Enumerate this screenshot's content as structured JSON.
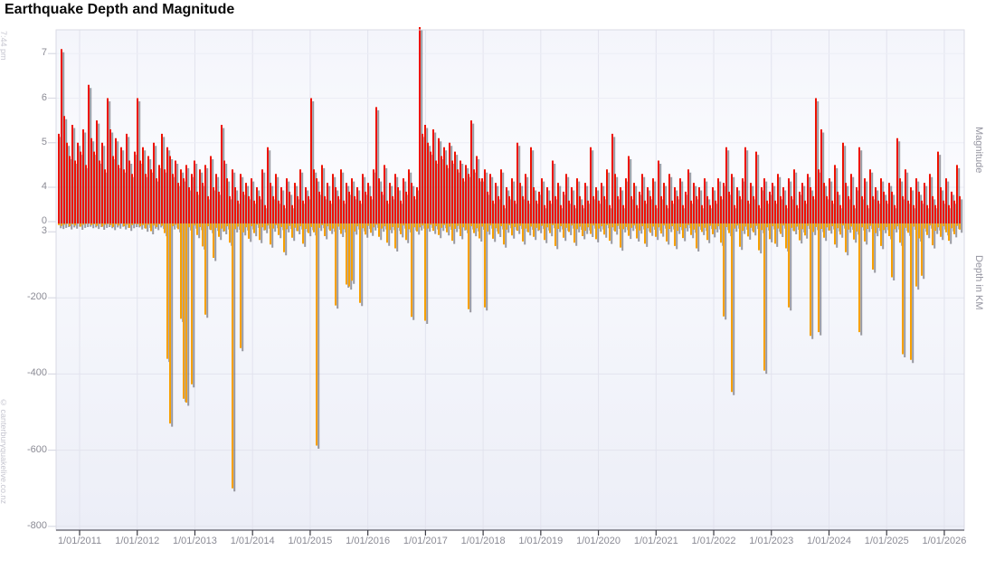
{
  "page": {
    "title": "Earthquake Depth and Magnitude"
  },
  "watermarks": {
    "time": "7:44 pm",
    "credit": "© canterburyquakelive.co.nz"
  },
  "chart_data": {
    "type": "bar",
    "title": "Earthquake Depth and Magnitude",
    "x_axis": {
      "tick_labels": [
        "1/01/2011",
        "1/01/2012",
        "1/01/2013",
        "1/01/2014",
        "1/01/2015",
        "1/01/2016",
        "1/01/2017",
        "1/01/2018",
        "1/01/2019",
        "1/01/2020",
        "1/01/2021",
        "1/01/2022",
        "1/01/2023",
        "1/01/2024",
        "1/01/2025",
        "1/01/2026"
      ],
      "range_years": [
        2010.6,
        2026.35
      ]
    },
    "y_axis_left": {
      "magnitude_ticks": [
        7,
        6,
        5,
        4,
        3
      ],
      "depth_zero_label": "0",
      "depth_ticks": [
        -200,
        -400,
        -600,
        -800
      ],
      "magnitude_range": [
        3,
        7.5
      ],
      "depth_range_km": [
        0,
        -800
      ]
    },
    "y_axis_right": {
      "top_label": "Magnitude",
      "bottom_label": "Depth in KM"
    },
    "legend": "none",
    "grid": "on",
    "series": [
      {
        "name": "Magnitude",
        "color": "#ee1100",
        "direction": "up"
      },
      {
        "name": "Depth in KM",
        "color": "#f7a000",
        "direction": "down"
      }
    ],
    "points_format": [
      "magnitude",
      "depth_km"
    ],
    "points": [
      [
        5.2,
        -9
      ],
      [
        7.1,
        -11
      ],
      [
        5.6,
        -8
      ],
      [
        5.0,
        -6
      ],
      [
        4.7,
        -12
      ],
      [
        5.4,
        -7
      ],
      [
        4.6,
        -10
      ],
      [
        5.0,
        -5
      ],
      [
        4.8,
        -13
      ],
      [
        5.3,
        -8
      ],
      [
        4.5,
        -6
      ],
      [
        6.3,
        -5
      ],
      [
        5.1,
        -9
      ],
      [
        4.8,
        -7
      ],
      [
        5.5,
        -11
      ],
      [
        4.6,
        -6
      ],
      [
        5.0,
        -13
      ],
      [
        4.4,
        -8
      ],
      [
        6.0,
        -6
      ],
      [
        5.3,
        -9
      ],
      [
        4.7,
        -14
      ],
      [
        5.1,
        -7
      ],
      [
        4.5,
        -10
      ],
      [
        4.9,
        -5
      ],
      [
        4.4,
        -12
      ],
      [
        5.2,
        -8
      ],
      [
        4.6,
        -16
      ],
      [
        4.3,
        -9
      ],
      [
        4.8,
        -6
      ],
      [
        6.0,
        -7
      ],
      [
        4.6,
        -12
      ],
      [
        4.9,
        -9
      ],
      [
        4.3,
        -18
      ],
      [
        4.7,
        -8
      ],
      [
        4.4,
        -25
      ],
      [
        5.0,
        -10
      ],
      [
        4.2,
        -14
      ],
      [
        4.5,
        -7
      ],
      [
        5.2,
        -11
      ],
      [
        4.4,
        -30
      ],
      [
        4.9,
        -360
      ],
      [
        4.7,
        -530
      ],
      [
        4.3,
        -12
      ],
      [
        4.6,
        -8
      ],
      [
        4.1,
        -20
      ],
      [
        4.4,
        -255
      ],
      [
        4.2,
        -465
      ],
      [
        4.5,
        -475
      ],
      [
        4.0,
        -15
      ],
      [
        4.3,
        -427
      ],
      [
        4.6,
        -10
      ],
      [
        3.9,
        -35
      ],
      [
        4.4,
        -14
      ],
      [
        4.1,
        -65
      ],
      [
        4.5,
        -244
      ],
      [
        3.8,
        -12
      ],
      [
        4.7,
        -22
      ],
      [
        4.0,
        -95
      ],
      [
        4.3,
        -16
      ],
      [
        3.9,
        -40
      ],
      [
        5.4,
        -18
      ],
      [
        4.6,
        -25
      ],
      [
        4.2,
        -12
      ],
      [
        3.8,
        -55
      ],
      [
        4.4,
        -700
      ],
      [
        4.0,
        -20
      ],
      [
        3.7,
        -13
      ],
      [
        4.3,
        -332
      ],
      [
        3.9,
        -28
      ],
      [
        4.1,
        -15
      ],
      [
        3.8,
        -45
      ],
      [
        4.2,
        -12
      ],
      [
        3.7,
        -30
      ],
      [
        4.0,
        -8
      ],
      [
        3.8,
        -48
      ],
      [
        4.4,
        -15
      ],
      [
        3.6,
        -22
      ],
      [
        4.9,
        -10
      ],
      [
        4.1,
        -60
      ],
      [
        3.8,
        -18
      ],
      [
        4.3,
        -9
      ],
      [
        3.7,
        -35
      ],
      [
        4.0,
        -14
      ],
      [
        3.6,
        -80
      ],
      [
        4.2,
        -20
      ],
      [
        3.9,
        -11
      ],
      [
        3.6,
        -42
      ],
      [
        4.1,
        -16
      ],
      [
        3.8,
        -25
      ],
      [
        4.4,
        -12
      ],
      [
        3.7,
        -58
      ],
      [
        4.0,
        -19
      ],
      [
        3.8,
        -30
      ],
      [
        6.0,
        -14
      ],
      [
        4.4,
        -28
      ],
      [
        4.2,
        -588
      ],
      [
        3.9,
        -16
      ],
      [
        4.5,
        -9
      ],
      [
        3.8,
        -38
      ],
      [
        4.1,
        -12
      ],
      [
        3.7,
        -24
      ],
      [
        4.3,
        -18
      ],
      [
        4.0,
        -220
      ],
      [
        3.8,
        -13
      ],
      [
        4.4,
        -32
      ],
      [
        3.7,
        -20
      ],
      [
        4.1,
        -165
      ],
      [
        3.9,
        -170
      ],
      [
        4.2,
        -155
      ],
      [
        3.8,
        -26
      ],
      [
        4.0,
        -12
      ],
      [
        3.7,
        -213
      ],
      [
        4.3,
        -17
      ],
      [
        3.9,
        -34
      ],
      [
        4.1,
        -11
      ],
      [
        3.8,
        -29
      ],
      [
        4.4,
        -15
      ],
      [
        5.8,
        -8
      ],
      [
        4.2,
        -40
      ],
      [
        3.9,
        -18
      ],
      [
        4.5,
        -12
      ],
      [
        3.7,
        -55
      ],
      [
        4.1,
        -22
      ],
      [
        3.8,
        -14
      ],
      [
        4.3,
        -70
      ],
      [
        4.0,
        -16
      ],
      [
        3.7,
        -33
      ],
      [
        4.2,
        -10
      ],
      [
        3.9,
        -48
      ],
      [
        4.4,
        -20
      ],
      [
        4.1,
        -250
      ],
      [
        3.8,
        -15
      ],
      [
        4.0,
        -26
      ],
      [
        7.8,
        -15
      ],
      [
        5.2,
        -10
      ],
      [
        5.4,
        -260
      ],
      [
        5.0,
        -18
      ],
      [
        4.8,
        -8
      ],
      [
        5.3,
        -24
      ],
      [
        4.6,
        -12
      ],
      [
        5.1,
        -35
      ],
      [
        4.7,
        -16
      ],
      [
        4.9,
        -9
      ],
      [
        4.5,
        -28
      ],
      [
        5.0,
        -13
      ],
      [
        4.6,
        -50
      ],
      [
        4.8,
        -19
      ],
      [
        4.4,
        -11
      ],
      [
        4.6,
        -38
      ],
      [
        4.2,
        -15
      ],
      [
        4.5,
        -22
      ],
      [
        4.3,
        -230
      ],
      [
        5.5,
        -12
      ],
      [
        4.4,
        -30
      ],
      [
        4.7,
        -17
      ],
      [
        4.2,
        -44
      ],
      [
        4.2,
        -13
      ],
      [
        4.4,
        -225
      ],
      [
        3.9,
        -26
      ],
      [
        4.3,
        -10
      ],
      [
        3.7,
        -45
      ],
      [
        4.1,
        -17
      ],
      [
        3.8,
        -32
      ],
      [
        4.4,
        -12
      ],
      [
        3.6,
        -60
      ],
      [
        4.0,
        -21
      ],
      [
        3.8,
        -9
      ],
      [
        4.2,
        -36
      ],
      [
        3.7,
        -14
      ],
      [
        5.0,
        -24
      ],
      [
        4.1,
        -11
      ],
      [
        3.8,
        -52
      ],
      [
        4.3,
        -18
      ],
      [
        3.7,
        -28
      ],
      [
        4.9,
        -13
      ],
      [
        4.0,
        -40
      ],
      [
        3.7,
        -16
      ],
      [
        3.9,
        -22
      ],
      [
        4.2,
        -11
      ],
      [
        3.6,
        -48
      ],
      [
        4.0,
        -15
      ],
      [
        3.7,
        -30
      ],
      [
        4.6,
        -9
      ],
      [
        3.8,
        -64
      ],
      [
        4.1,
        -19
      ],
      [
        3.6,
        -12
      ],
      [
        3.9,
        -42
      ],
      [
        4.3,
        -16
      ],
      [
        3.7,
        -27
      ],
      [
        4.0,
        -10
      ],
      [
        3.6,
        -55
      ],
      [
        4.2,
        -20
      ],
      [
        3.8,
        -13
      ],
      [
        3.6,
        -38
      ],
      [
        4.1,
        -24
      ],
      [
        3.7,
        -15
      ],
      [
        4.9,
        -32
      ],
      [
        3.8,
        -10
      ],
      [
        4.0,
        -46
      ],
      [
        3.7,
        -18
      ],
      [
        4.1,
        -12
      ],
      [
        3.8,
        -34
      ],
      [
        4.4,
        -9
      ],
      [
        3.6,
        -50
      ],
      [
        5.2,
        -15
      ],
      [
        4.3,
        -26
      ],
      [
        3.8,
        -11
      ],
      [
        4.0,
        -68
      ],
      [
        3.6,
        -20
      ],
      [
        4.2,
        -14
      ],
      [
        4.7,
        -37
      ],
      [
        3.8,
        -16
      ],
      [
        4.1,
        -10
      ],
      [
        3.6,
        -44
      ],
      [
        3.9,
        -23
      ],
      [
        4.3,
        -12
      ],
      [
        3.7,
        -58
      ],
      [
        4.0,
        -17
      ],
      [
        3.8,
        -29
      ],
      [
        4.2,
        -13
      ],
      [
        3.6,
        -40
      ],
      [
        4.6,
        -15
      ],
      [
        3.8,
        -31
      ],
      [
        4.1,
        -10
      ],
      [
        3.6,
        -52
      ],
      [
        4.3,
        -19
      ],
      [
        3.7,
        -12
      ],
      [
        4.0,
        -64
      ],
      [
        3.8,
        -24
      ],
      [
        4.2,
        -14
      ],
      [
        3.6,
        -43
      ],
      [
        3.9,
        -17
      ],
      [
        4.4,
        -9
      ],
      [
        3.7,
        -35
      ],
      [
        4.1,
        -21
      ],
      [
        3.8,
        -70
      ],
      [
        4.0,
        -13
      ],
      [
        3.6,
        -27
      ],
      [
        4.2,
        -16
      ],
      [
        3.8,
        -48
      ],
      [
        3.6,
        -11
      ],
      [
        4.0,
        -33
      ],
      [
        3.7,
        -20
      ],
      [
        4.2,
        -12
      ],
      [
        3.8,
        -55
      ],
      [
        4.1,
        -249
      ],
      [
        4.9,
        -14
      ],
      [
        3.9,
        -30
      ],
      [
        4.3,
        -447
      ],
      [
        3.6,
        -18
      ],
      [
        4.0,
        -10
      ],
      [
        3.8,
        -66
      ],
      [
        4.2,
        -24
      ],
      [
        4.9,
        -13
      ],
      [
        3.7,
        -39
      ],
      [
        4.1,
        -16
      ],
      [
        3.8,
        -28
      ],
      [
        4.8,
        -11
      ],
      [
        3.6,
        -75
      ],
      [
        4.0,
        -22
      ],
      [
        4.2,
        -391
      ],
      [
        3.7,
        -15
      ],
      [
        3.9,
        -46
      ],
      [
        4.1,
        -12
      ],
      [
        3.7,
        -58
      ],
      [
        4.3,
        -18
      ],
      [
        3.8,
        -32
      ],
      [
        4.0,
        -10
      ],
      [
        3.6,
        -70
      ],
      [
        4.2,
        -225
      ],
      [
        3.8,
        -16
      ],
      [
        4.4,
        -25
      ],
      [
        3.6,
        -13
      ],
      [
        3.9,
        -49
      ],
      [
        4.1,
        -20
      ],
      [
        3.7,
        -36
      ],
      [
        4.3,
        -11
      ],
      [
        4.0,
        -300
      ],
      [
        3.8,
        -27
      ],
      [
        6.0,
        -14
      ],
      [
        4.4,
        -290
      ],
      [
        5.3,
        -19
      ],
      [
        4.1,
        -42
      ],
      [
        3.8,
        -15
      ],
      [
        4.2,
        -23
      ],
      [
        3.7,
        -12
      ],
      [
        4.5,
        -60
      ],
      [
        3.9,
        -17
      ],
      [
        3.6,
        -34
      ],
      [
        5.0,
        -10
      ],
      [
        4.1,
        -80
      ],
      [
        3.8,
        -21
      ],
      [
        4.3,
        -13
      ],
      [
        3.6,
        -47
      ],
      [
        4.0,
        -26
      ],
      [
        4.9,
        -290
      ],
      [
        3.8,
        -15
      ],
      [
        4.2,
        -52
      ],
      [
        3.6,
        -19
      ],
      [
        4.4,
        -11
      ],
      [
        3.8,
        -126
      ],
      [
        4.0,
        -30
      ],
      [
        3.7,
        -16
      ],
      [
        4.2,
        -64
      ],
      [
        3.9,
        -22
      ],
      [
        3.7,
        -14
      ],
      [
        4.1,
        -38
      ],
      [
        3.9,
        -146
      ],
      [
        3.6,
        -20
      ],
      [
        5.1,
        -12
      ],
      [
        4.2,
        -55
      ],
      [
        3.8,
        -348
      ],
      [
        4.4,
        -16
      ],
      [
        3.7,
        -29
      ],
      [
        4.0,
        -363
      ],
      [
        3.6,
        -13
      ],
      [
        4.2,
        -170
      ],
      [
        3.9,
        -44
      ],
      [
        3.7,
        -142
      ],
      [
        4.1,
        -18
      ],
      [
        3.6,
        -35
      ],
      [
        4.3,
        -10
      ],
      [
        3.8,
        -62
      ],
      [
        3.6,
        -24
      ],
      [
        4.8,
        -15
      ],
      [
        4.0,
        -40
      ],
      [
        3.7,
        -12
      ],
      [
        4.2,
        -28
      ],
      [
        3.6,
        -50
      ],
      [
        3.9,
        -17
      ],
      [
        3.7,
        -33
      ],
      [
        4.5,
        -11
      ],
      [
        3.8,
        -21
      ]
    ]
  },
  "colors": {
    "magnitude_bar": "#ee1100",
    "depth_bar": "#f7a000",
    "bar_shadow": "#4a4a55",
    "grid": "#e2e3ee",
    "grid_faint": "#ecedf5",
    "plot_border": "#d9dae4",
    "axis_line": "#5a5a64",
    "tick_mark": "#3c3c44",
    "tick_label": "#8b8b95",
    "bg_top": "#f4f5fb",
    "bg_mid": "#fafbfe",
    "bg_bottom": "#eceef7",
    "watermark": "#c6c6d0"
  }
}
